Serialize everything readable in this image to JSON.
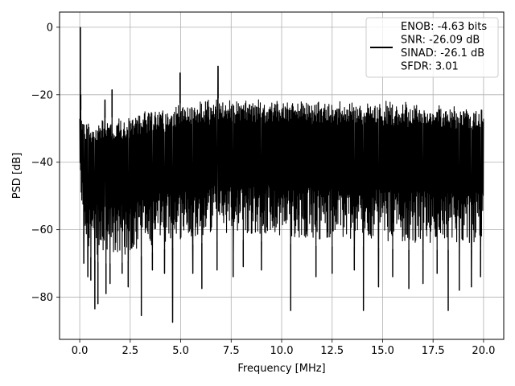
{
  "chart_data": {
    "type": "line",
    "title": "",
    "xlabel": "Frequency [MHz]",
    "ylabel": "PSD [dB]",
    "xlim": [
      -1.0,
      21.0
    ],
    "ylim": [
      -92.5,
      4.5
    ],
    "xticks": [
      0.0,
      2.5,
      5.0,
      7.5,
      10.0,
      12.5,
      15.0,
      17.5,
      20.0
    ],
    "xtick_labels": [
      "0.0",
      "2.5",
      "5.0",
      "7.5",
      "10.0",
      "12.5",
      "15.0",
      "17.5",
      "20.0"
    ],
    "yticks": [
      0,
      -20,
      -40,
      -60,
      -80
    ],
    "ytick_labels": [
      "0",
      "−20",
      "−40",
      "−60",
      "−80"
    ],
    "grid": true,
    "legend_position": "top-right",
    "legend": {
      "line_color": "#000000",
      "lines": [
        "ENOB: -4.63 bits",
        "SNR: -26.09 dB",
        "SINAD: -26.1 dB",
        "SFDR: 3.01"
      ]
    },
    "series": [
      {
        "color": "#000000",
        "x_range": [
          0.0,
          20.0
        ],
        "upper_envelope": {
          "x": [
            0.0,
            0.25,
            0.5,
            1.0,
            2.0,
            3.0,
            4.0,
            5.0,
            6.0,
            7.0,
            8.0,
            10.0,
            12.0,
            14.0,
            16.0,
            18.0,
            20.0
          ],
          "y": [
            -24,
            -27,
            -27.5,
            -27,
            -26.5,
            -25,
            -23.5,
            -22.5,
            -21.5,
            -21,
            -21,
            -21,
            -21.5,
            -21.5,
            -22,
            -22.5,
            -23
          ]
        },
        "lower_envelope": {
          "x": [
            0.0,
            0.25,
            0.5,
            1.0,
            2.0,
            3.0,
            4.0,
            5.0,
            6.0,
            7.0,
            8.0,
            10.0,
            12.0,
            14.0,
            16.0,
            18.0,
            20.0
          ],
          "y": [
            -50,
            -63,
            -68,
            -70,
            -70,
            -68,
            -66,
            -65,
            -64,
            -63,
            -63,
            -64,
            -65,
            -65,
            -66,
            -66,
            -66
          ]
        },
        "peaks": [
          {
            "x": 0.03,
            "y": 0
          },
          {
            "x": 0.05,
            "y": -20
          },
          {
            "x": 1.25,
            "y": -21.5
          },
          {
            "x": 1.6,
            "y": -18.5
          },
          {
            "x": 4.97,
            "y": -13.5
          },
          {
            "x": 6.85,
            "y": -11.5
          }
        ],
        "dips": [
          {
            "x": 0.2,
            "y": -70
          },
          {
            "x": 0.4,
            "y": -74
          },
          {
            "x": 0.55,
            "y": -75
          },
          {
            "x": 0.75,
            "y": -83.5
          },
          {
            "x": 0.9,
            "y": -82
          },
          {
            "x": 1.3,
            "y": -79
          },
          {
            "x": 1.5,
            "y": -76
          },
          {
            "x": 2.1,
            "y": -73
          },
          {
            "x": 2.4,
            "y": -77
          },
          {
            "x": 3.05,
            "y": -85.5
          },
          {
            "x": 3.6,
            "y": -72
          },
          {
            "x": 4.2,
            "y": -73
          },
          {
            "x": 4.6,
            "y": -87.5
          },
          {
            "x": 5.6,
            "y": -73
          },
          {
            "x": 6.05,
            "y": -77.5
          },
          {
            "x": 6.8,
            "y": -72
          },
          {
            "x": 7.6,
            "y": -74
          },
          {
            "x": 8.1,
            "y": -71
          },
          {
            "x": 9.0,
            "y": -72
          },
          {
            "x": 10.45,
            "y": -84
          },
          {
            "x": 11.7,
            "y": -74
          },
          {
            "x": 12.5,
            "y": -73
          },
          {
            "x": 13.6,
            "y": -72
          },
          {
            "x": 14.05,
            "y": -84
          },
          {
            "x": 14.8,
            "y": -77
          },
          {
            "x": 15.5,
            "y": -74
          },
          {
            "x": 16.3,
            "y": -77.5
          },
          {
            "x": 17.0,
            "y": -76
          },
          {
            "x": 17.7,
            "y": -73
          },
          {
            "x": 18.25,
            "y": -84
          },
          {
            "x": 18.8,
            "y": -78
          },
          {
            "x": 19.4,
            "y": -77
          },
          {
            "x": 19.85,
            "y": -74
          }
        ],
        "sample_count": 1400
      }
    ]
  }
}
